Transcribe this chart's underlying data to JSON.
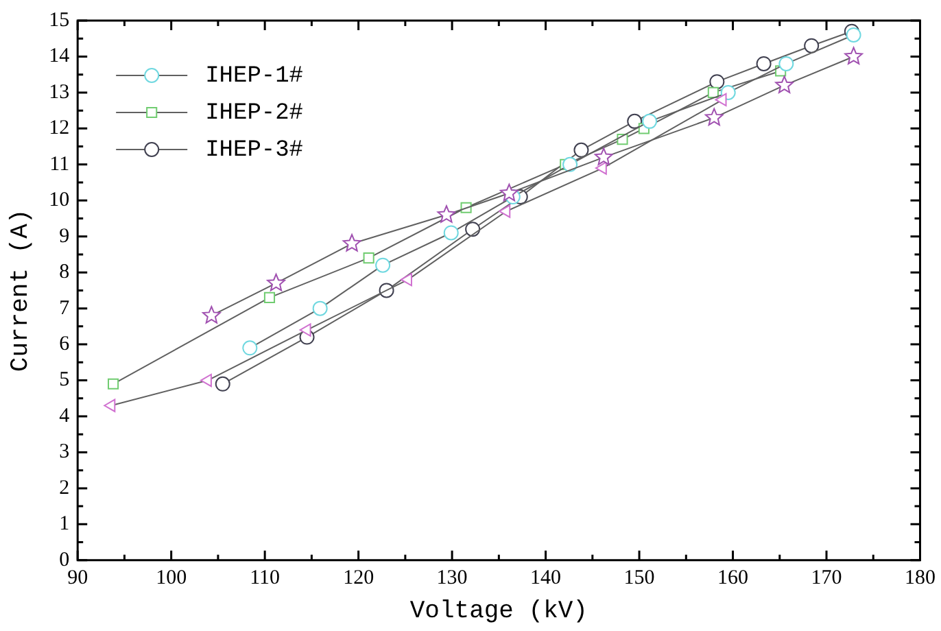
{
  "chart_data": {
    "type": "line",
    "xlabel": "Voltage (kV)",
    "ylabel": "Current (A)",
    "xlim": [
      90,
      180
    ],
    "ylim": [
      0,
      15
    ],
    "xticks": [
      90,
      {
        "value": 95,
        "label": null
      },
      100,
      {
        "value": 105,
        "label": null
      },
      110,
      {
        "value": 115,
        "label": null
      },
      120,
      {
        "value": 125,
        "label": null
      },
      130,
      {
        "value": 135,
        "label": null
      },
      140,
      {
        "value": 145,
        "label": null
      },
      150,
      {
        "value": 155,
        "label": null
      },
      160,
      {
        "value": 165,
        "label": null
      },
      170,
      {
        "value": 175,
        "label": null
      },
      180
    ],
    "yticks": [
      0,
      {
        "value": 0.5,
        "label": null
      },
      1,
      {
        "value": 1.5,
        "label": null
      },
      2,
      {
        "value": 2.5,
        "label": null
      },
      3,
      {
        "value": 3.5,
        "label": null
      },
      4,
      {
        "value": 4.5,
        "label": null
      },
      5,
      {
        "value": 5.5,
        "label": null
      },
      6,
      {
        "value": 6.5,
        "label": null
      },
      7,
      {
        "value": 7.5,
        "label": null
      },
      8,
      {
        "value": 8.5,
        "label": null
      },
      9,
      {
        "value": 9.5,
        "label": null
      },
      10,
      {
        "value": 10.5,
        "label": null
      },
      11,
      {
        "value": 11.5,
        "label": null
      },
      12,
      {
        "value": 12.5,
        "label": null
      },
      13,
      {
        "value": 13.5,
        "label": null
      },
      14,
      {
        "value": 14.5,
        "label": null
      },
      15
    ],
    "grid": false,
    "legend": "top left",
    "line_style": "solid",
    "series": [
      {
        "color": "#d070d0",
        "marker": "triangle",
        "x": [
          93.6,
          103.9,
          114.5,
          125.3,
          135.8,
          146.1,
          158.9
        ],
        "values": [
          4.3,
          5.0,
          6.4,
          7.8,
          9.7,
          10.9,
          12.8
        ]
      },
      {
        "color": "#a050b0",
        "marker": "star",
        "x": [
          104.3,
          111.2,
          119.3,
          129.4,
          136.1,
          146.2,
          158.0,
          165.5,
          172.9
        ],
        "values": [
          6.8,
          7.7,
          8.8,
          9.6,
          10.2,
          11.2,
          12.3,
          13.2,
          14.0
        ]
      },
      {
        "name": "IHEP-1#",
        "color": "#70d8e0",
        "marker": "circle",
        "x": [
          108.4,
          115.9,
          122.6,
          129.9,
          136.5,
          142.6,
          151.1,
          159.5,
          165.7,
          172.9
        ],
        "values": [
          5.9,
          7.0,
          8.2,
          9.1,
          10.1,
          11.0,
          12.2,
          13.0,
          13.8,
          14.6
        ]
      },
      {
        "name": "IHEP-2#",
        "color": "#70cc70",
        "marker": "square",
        "x": [
          93.8,
          110.5,
          121.1,
          131.5,
          142.1,
          148.2,
          150.5,
          157.9,
          165.1
        ],
        "values": [
          4.9,
          7.3,
          8.4,
          9.8,
          11.0,
          11.7,
          12.0,
          13.0,
          13.6
        ]
      },
      {
        "name": "IHEP-3#",
        "color": "#404050",
        "marker": "circle",
        "x": [
          105.5,
          114.5,
          123.0,
          132.2,
          137.3,
          143.8,
          149.5,
          158.3,
          163.3,
          168.4,
          172.7
        ],
        "values": [
          4.9,
          6.2,
          7.5,
          9.2,
          10.1,
          11.4,
          12.2,
          13.3,
          13.8,
          14.3,
          14.7
        ]
      }
    ]
  }
}
